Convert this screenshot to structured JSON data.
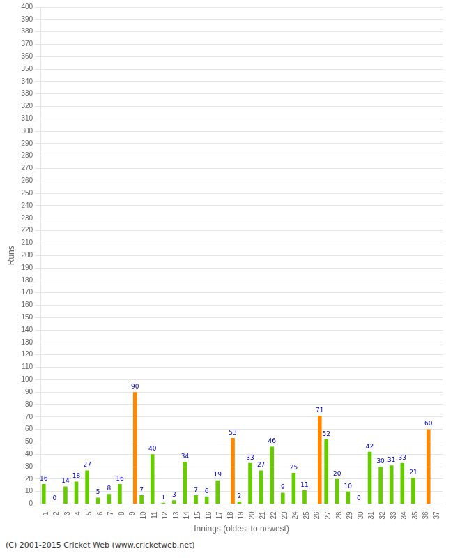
{
  "chart_data": {
    "type": "bar",
    "xlabel": "Innings (oldest to newest)",
    "ylabel": "Runs",
    "footer": "(C) 2001-2015 Cricket Web (www.cricketweb.net)",
    "categories": [
      "1",
      "2",
      "3",
      "4",
      "5",
      "6",
      "7",
      "8",
      "9",
      "10",
      "11",
      "12",
      "13",
      "14",
      "15",
      "16",
      "17",
      "18",
      "19",
      "20",
      "21",
      "22",
      "23",
      "24",
      "25",
      "26",
      "27",
      "28",
      "29",
      "30",
      "31",
      "32",
      "33",
      "34",
      "35",
      "36",
      "37"
    ],
    "series": [
      {
        "color": "#66cc00",
        "values": [
          16,
          0,
          14,
          18,
          27,
          5,
          8,
          16,
          0,
          7,
          40,
          1,
          3,
          34,
          7,
          6,
          19,
          0,
          2,
          33,
          27,
          46,
          9,
          25,
          11,
          0,
          52,
          20,
          10,
          0,
          42,
          30,
          31,
          33,
          21,
          0,
          0
        ],
        "value_labels": [
          "16",
          "0",
          "14",
          "18",
          "27",
          "5",
          "8",
          "16",
          null,
          "7",
          "40",
          "1",
          "3",
          "34",
          "7",
          "6",
          "19",
          null,
          "2",
          "33",
          "27",
          "46",
          "9",
          "25",
          "11",
          null,
          "52",
          "20",
          "10",
          "0",
          "42",
          "30",
          "31",
          "33",
          "21",
          null,
          null
        ]
      },
      {
        "color": "#ff8800",
        "values": [
          0,
          0,
          0,
          0,
          0,
          0,
          0,
          0,
          90,
          0,
          0,
          0,
          0,
          0,
          0,
          0,
          0,
          53,
          0,
          0,
          0,
          0,
          0,
          0,
          0,
          71,
          0,
          0,
          0,
          0,
          0,
          0,
          0,
          0,
          0,
          60,
          0
        ],
        "value_labels": [
          null,
          null,
          null,
          null,
          null,
          null,
          null,
          null,
          "90",
          null,
          null,
          null,
          null,
          null,
          null,
          null,
          null,
          "53",
          null,
          null,
          null,
          null,
          null,
          null,
          null,
          "71",
          null,
          null,
          null,
          null,
          null,
          null,
          null,
          null,
          null,
          "60",
          null
        ]
      }
    ],
    "ylim": [
      0,
      400
    ],
    "yticks": [
      0,
      10,
      20,
      30,
      40,
      50,
      60,
      70,
      80,
      90,
      100,
      110,
      120,
      130,
      140,
      150,
      160,
      170,
      180,
      190,
      200,
      210,
      220,
      230,
      240,
      250,
      260,
      270,
      280,
      290,
      300,
      310,
      320,
      330,
      340,
      350,
      360,
      370,
      380,
      390,
      400
    ],
    "grid": true,
    "data_labels": true
  }
}
